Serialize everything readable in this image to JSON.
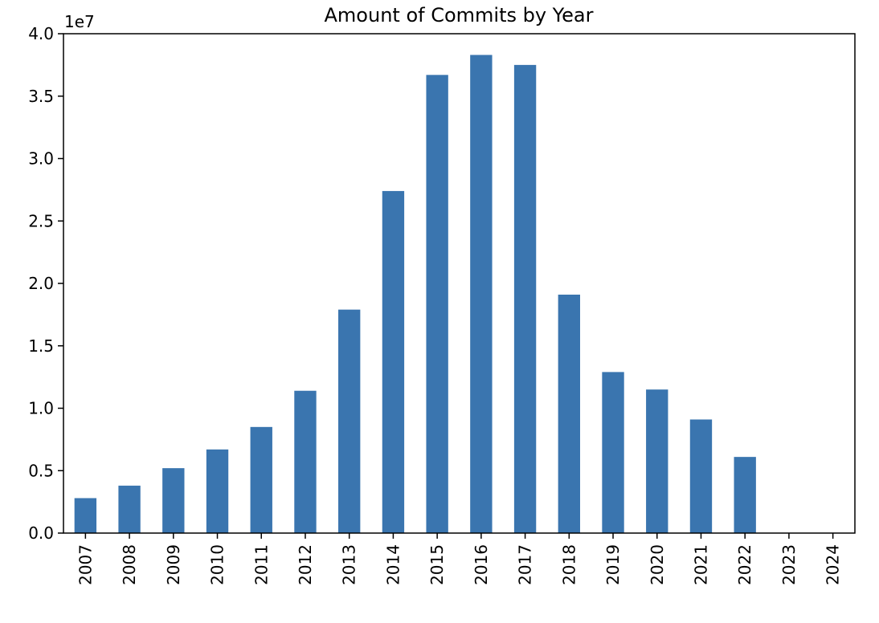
{
  "chart_data": {
    "type": "bar",
    "title": "Amount of Commits by Year",
    "xlabel": "",
    "ylabel": "",
    "scale_label": "1e7",
    "categories": [
      "2007",
      "2008",
      "2009",
      "2010",
      "2011",
      "2012",
      "2013",
      "2014",
      "2015",
      "2016",
      "2017",
      "2018",
      "2019",
      "2020",
      "2021",
      "2022",
      "2023",
      "2024"
    ],
    "values": [
      2800000,
      3800000,
      5200000,
      6700000,
      8500000,
      11400000,
      17900000,
      27400000,
      36700000,
      38300000,
      37500000,
      19100000,
      12900000,
      11500000,
      9100000,
      6100000,
      0,
      0
    ],
    "ylim": [
      0,
      40000000
    ],
    "yticks": [
      0,
      5000000,
      10000000,
      15000000,
      20000000,
      25000000,
      30000000,
      35000000,
      40000000
    ],
    "ytick_labels": [
      "0.0",
      "0.5",
      "1.0",
      "1.5",
      "2.0",
      "2.5",
      "3.0",
      "3.5",
      "4.0"
    ],
    "bar_color": "#3a75af",
    "grid": false,
    "legend": "none"
  }
}
